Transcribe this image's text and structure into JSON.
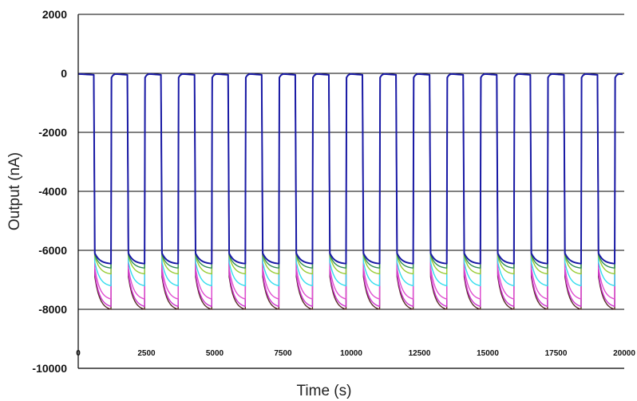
{
  "chart_data": {
    "type": "line",
    "title": "",
    "xlabel": "Time (s)",
    "ylabel": "Output (nA)",
    "xlim": [
      0,
      20000
    ],
    "ylim": [
      -10000,
      2000
    ],
    "x_ticks": [
      0,
      2500,
      5000,
      7500,
      10000,
      12500,
      15000,
      17500,
      20000
    ],
    "x_tick_labels": [
      "0",
      "2500",
      "5000",
      "7500",
      "10000",
      "12500",
      "15000",
      "17500",
      "20000"
    ],
    "y_ticks": [
      2000,
      0,
      -2000,
      -4000,
      -6000,
      -8000,
      -10000
    ],
    "y_tick_labels": [
      "2000",
      "0",
      "-2000",
      "-4000",
      "-6000",
      "-8000",
      "-10000"
    ],
    "gridlines": "horizontal",
    "legend": "none",
    "pulse": {
      "count": 16,
      "first_start": 590,
      "period": 1230,
      "on_duration": 610,
      "baseline": -20
    },
    "series": [
      {
        "color": "#5a2a2a",
        "start": -6900,
        "end": -8000
      },
      {
        "color": "#cc33cc",
        "start": -6800,
        "end": -7900
      },
      {
        "color": "#e04fd0",
        "start": -6600,
        "end": -7650
      },
      {
        "color": "#33ddee",
        "start": -6400,
        "end": -7200
      },
      {
        "color": "#99cc33",
        "start": -6200,
        "end": -6800
      },
      {
        "color": "#2e8b57",
        "start": -6150,
        "end": -6600
      },
      {
        "color": "#1a1aa6",
        "start": -6100,
        "end": -6450
      }
    ]
  }
}
